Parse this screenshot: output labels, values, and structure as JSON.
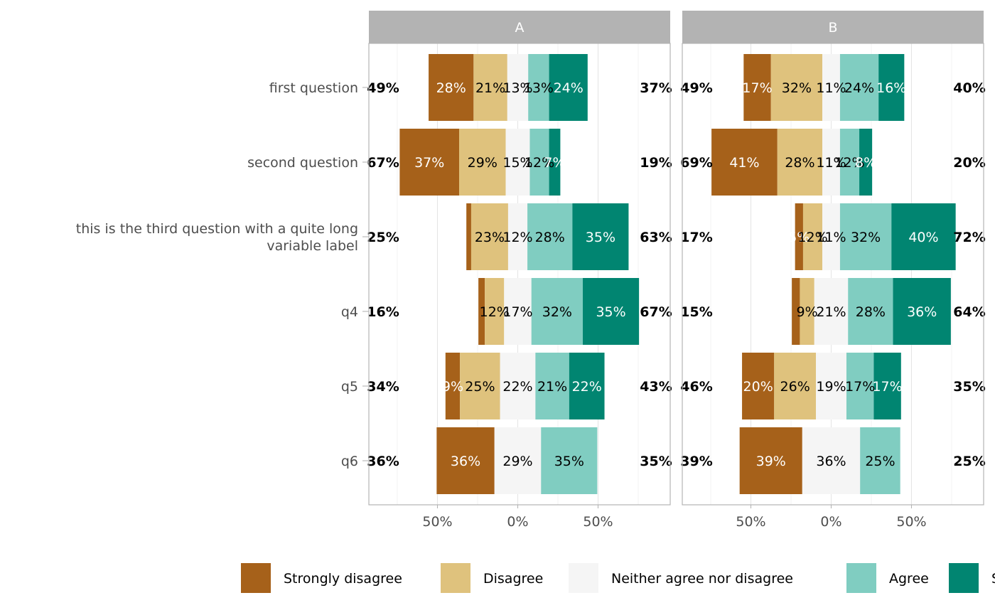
{
  "chart_data": {
    "type": "bar",
    "subtype": "diverging-stacked-likert",
    "x_tick_labels": [
      "50%",
      "0%",
      "50%"
    ],
    "x_ticks": [
      -50,
      0,
      50
    ],
    "xlim": [
      -93,
      95
    ],
    "grid": true,
    "legend_placement": "bottom",
    "categories": [
      "first question",
      "second question",
      "this is the third question with a quite long\nvariable label",
      "q4",
      "q5",
      "q6"
    ],
    "series": [
      {
        "name": "Strongly disagree",
        "color": "#A6611A"
      },
      {
        "name": "Disagree",
        "color": "#DFC27D"
      },
      {
        "name": "Neither agree nor disagree",
        "color": "#F5F5F5"
      },
      {
        "name": "Agree",
        "color": "#80CDC1"
      },
      {
        "name": "Strongly agree",
        "color": "#018571"
      }
    ],
    "panels": [
      {
        "label": "A",
        "rows": [
          {
            "values": [
              28,
              21,
              13,
              13,
              24
            ],
            "labels": [
              "28%",
              "21%",
              "13%",
              "13%",
              "24%"
            ],
            "left_total": "49%",
            "right_total": "37%"
          },
          {
            "values": [
              37,
              29,
              15,
              12,
              7
            ],
            "labels": [
              "37%",
              "29%",
              "15%",
              "12%",
              "7%"
            ],
            "left_total": "67%",
            "right_total": "19%"
          },
          {
            "values": [
              3,
              23,
              12,
              28,
              35
            ],
            "labels": [
              "",
              "23%",
              "12%",
              "28%",
              "35%"
            ],
            "left_total": "25%",
            "right_total": "63%"
          },
          {
            "values": [
              4,
              12,
              17,
              32,
              35
            ],
            "labels": [
              "",
              "12%",
              "17%",
              "32%",
              "35%"
            ],
            "left_total": "16%",
            "right_total": "67%"
          },
          {
            "values": [
              9,
              25,
              22,
              21,
              22
            ],
            "labels": [
              "9%",
              "25%",
              "22%",
              "21%",
              "22%"
            ],
            "left_total": "34%",
            "right_total": "43%"
          },
          {
            "values": [
              36,
              0,
              29,
              35,
              0
            ],
            "labels": [
              "36%",
              "",
              "29%",
              "35%",
              ""
            ],
            "left_total": "36%",
            "right_total": "35%"
          }
        ]
      },
      {
        "label": "B",
        "rows": [
          {
            "values": [
              17,
              32,
              11,
              24,
              16
            ],
            "labels": [
              "17%",
              "32%",
              "11%",
              "24%",
              "16%"
            ],
            "left_total": "49%",
            "right_total": "40%"
          },
          {
            "values": [
              41,
              28,
              11,
              12,
              8
            ],
            "labels": [
              "41%",
              "28%",
              "11%",
              "12%",
              "8%"
            ],
            "left_total": "69%",
            "right_total": "20%"
          },
          {
            "values": [
              5,
              12,
              11,
              32,
              40
            ],
            "labels": [
              "5%",
              "12%",
              "11%",
              "32%",
              "40%"
            ],
            "left_total": "17%",
            "right_total": "72%"
          },
          {
            "values": [
              5,
              9,
              21,
              28,
              36
            ],
            "labels": [
              "",
              "9%",
              "21%",
              "28%",
              "36%"
            ],
            "left_total": "15%",
            "right_total": "64%"
          },
          {
            "values": [
              20,
              26,
              19,
              17,
              17
            ],
            "labels": [
              "20%",
              "26%",
              "19%",
              "17%",
              "17%"
            ],
            "left_total": "46%",
            "right_total": "35%"
          },
          {
            "values": [
              39,
              0,
              36,
              25,
              0
            ],
            "labels": [
              "39%",
              "",
              "36%",
              "25%",
              ""
            ],
            "left_total": "39%",
            "right_total": "25%"
          }
        ]
      }
    ]
  }
}
